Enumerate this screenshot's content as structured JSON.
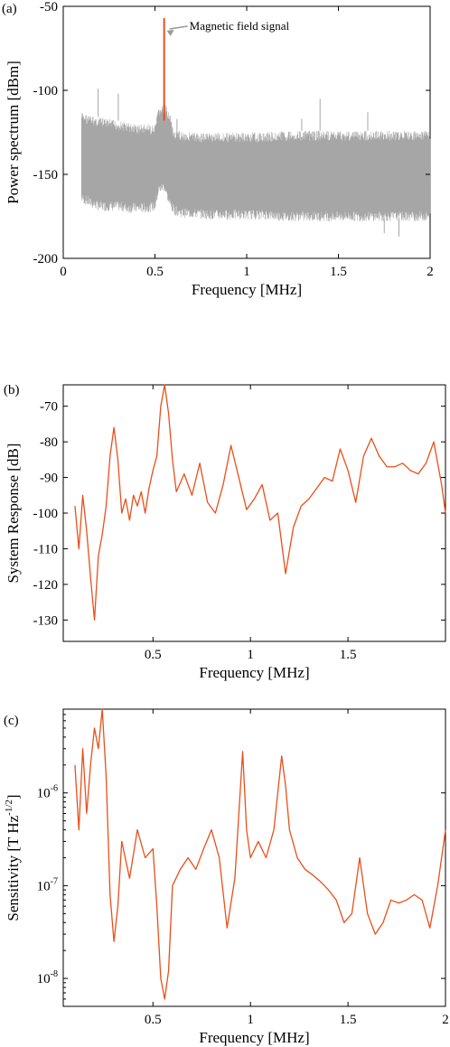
{
  "chart_data": [
    {
      "type": "line",
      "panel_label": "(a)",
      "xlabel": "Frequency [MHz]",
      "ylabel": "Power spectrum [dBm]",
      "xlim": [
        0,
        2
      ],
      "ylim": [
        -200,
        -50
      ],
      "xticks": [
        0,
        0.5,
        1,
        1.5,
        2
      ],
      "xtick_labels": [
        "0",
        "0.5",
        "1",
        "1.5",
        "2"
      ],
      "yticks": [
        -50,
        -100,
        -150,
        -200
      ],
      "ytick_labels": [
        "-50",
        "-100",
        "-150",
        "-200"
      ],
      "grid": false,
      "annotation": {
        "text": "Magnetic field signal",
        "x": 0.55,
        "y": -57
      },
      "series": [
        {
          "color": "#a6a6a6",
          "x": [
            0.1,
            0.15,
            0.2,
            0.25,
            0.3,
            0.35,
            0.4,
            0.45,
            0.5,
            0.52,
            0.55,
            0.58,
            0.6,
            0.65,
            0.7,
            0.8,
            0.9,
            1.0,
            1.1,
            1.2,
            1.3,
            1.4,
            1.5,
            1.6,
            1.7,
            1.8,
            1.9,
            2.0
          ],
          "upper": [
            -113,
            -115,
            -116,
            -117,
            -118,
            -119,
            -120,
            -120,
            -121,
            -110,
            -108,
            -112,
            -124,
            -124,
            -125,
            -125,
            -125,
            -125,
            -125,
            -124,
            -124,
            -124,
            -124,
            -124,
            -124,
            -124,
            -124,
            -124
          ],
          "lower": [
            -165,
            -168,
            -170,
            -170,
            -170,
            -171,
            -171,
            -171,
            -170,
            -160,
            -158,
            -168,
            -172,
            -174,
            -174,
            -175,
            -175,
            -175,
            -175,
            -176,
            -176,
            -176,
            -176,
            -176,
            -176,
            -176,
            -176,
            -176
          ],
          "spikes": [
            [
              0.19,
              -99
            ],
            [
              0.3,
              -102
            ],
            [
              1.4,
              -105
            ],
            [
              0.62,
              -117
            ],
            [
              1.3,
              -117
            ],
            [
              1.66,
              -113
            ],
            [
              1.83,
              -187
            ],
            [
              0.2,
              -160
            ],
            [
              1.75,
              -185
            ]
          ]
        },
        {
          "name": "Magnetic field signal",
          "color": "#e8501a",
          "x": [
            0.55
          ],
          "y": [
            -57
          ]
        }
      ]
    },
    {
      "type": "line",
      "panel_label": "(b)",
      "xlabel": "Frequency [MHz]",
      "ylabel": "System Response [dB]",
      "xlim": [
        0.04,
        2.0
      ],
      "ylim": [
        -136,
        -64
      ],
      "xticks": [
        0.5,
        1,
        1.5
      ],
      "xtick_labels": [
        "0.5",
        "1",
        "1.5"
      ],
      "yticks": [
        -70,
        -80,
        -90,
        -100,
        -110,
        -120,
        -130
      ],
      "ytick_labels": [
        "-70",
        "-80",
        "-90",
        "-100",
        "-110",
        "-120",
        "-130"
      ],
      "grid": false,
      "series": [
        {
          "color": "#e8501a",
          "x": [
            0.1,
            0.12,
            0.14,
            0.16,
            0.18,
            0.2,
            0.22,
            0.24,
            0.26,
            0.28,
            0.3,
            0.32,
            0.34,
            0.36,
            0.38,
            0.4,
            0.42,
            0.44,
            0.46,
            0.48,
            0.5,
            0.52,
            0.54,
            0.56,
            0.58,
            0.6,
            0.62,
            0.66,
            0.7,
            0.74,
            0.78,
            0.82,
            0.86,
            0.9,
            0.94,
            0.98,
            1.02,
            1.06,
            1.1,
            1.14,
            1.18,
            1.22,
            1.26,
            1.3,
            1.34,
            1.38,
            1.42,
            1.46,
            1.5,
            1.54,
            1.58,
            1.62,
            1.66,
            1.7,
            1.74,
            1.78,
            1.82,
            1.86,
            1.9,
            1.94,
            1.98,
            2.0
          ],
          "y": [
            -98,
            -110,
            -95,
            -105,
            -118,
            -130,
            -112,
            -106,
            -98,
            -84,
            -76,
            -85,
            -100,
            -96,
            -102,
            -95,
            -98,
            -94,
            -100,
            -93,
            -88,
            -84,
            -70,
            -64,
            -72,
            -85,
            -94,
            -89,
            -95,
            -86,
            -97,
            -100,
            -92,
            -81,
            -90,
            -99,
            -96,
            -92,
            -102,
            -100,
            -117,
            -104,
            -98,
            -96,
            -93,
            -90,
            -91,
            -82,
            -88,
            -97,
            -84,
            -79,
            -84,
            -87,
            -87,
            -86,
            -88,
            -89,
            -86,
            -80,
            -92,
            -100
          ]
        }
      ]
    },
    {
      "type": "line",
      "panel_label": "(c)",
      "xlabel": "Frequency [MHz]",
      "ylabel": "Sensitivity [T Hz^-1/2]",
      "log_y": true,
      "xlim": [
        0.04,
        2.0
      ],
      "ylim": [
        5e-09,
        8e-06
      ],
      "xticks": [
        0.5,
        1,
        1.5,
        2
      ],
      "xtick_labels": [
        "0.5",
        "1",
        "1.5",
        "2"
      ],
      "yticks": [
        1e-08,
        1e-07,
        1e-06
      ],
      "ytick_labels": [
        "10^-8",
        "10^-7",
        "10^-6"
      ],
      "grid": false,
      "series": [
        {
          "color": "#e8501a",
          "x": [
            0.1,
            0.12,
            0.14,
            0.16,
            0.18,
            0.2,
            0.22,
            0.24,
            0.26,
            0.28,
            0.3,
            0.32,
            0.34,
            0.38,
            0.42,
            0.46,
            0.5,
            0.52,
            0.54,
            0.56,
            0.58,
            0.6,
            0.64,
            0.68,
            0.72,
            0.76,
            0.8,
            0.84,
            0.88,
            0.92,
            0.96,
            0.98,
            1.0,
            1.04,
            1.08,
            1.12,
            1.16,
            1.18,
            1.2,
            1.24,
            1.28,
            1.32,
            1.36,
            1.4,
            1.44,
            1.48,
            1.52,
            1.56,
            1.6,
            1.64,
            1.68,
            1.72,
            1.76,
            1.8,
            1.84,
            1.88,
            1.92,
            1.96,
            2.0
          ],
          "y": [
            2e-06,
            4e-07,
            3e-06,
            6e-07,
            2e-06,
            5e-06,
            3e-06,
            8e-06,
            1.5e-06,
            8e-08,
            2.5e-08,
            6e-08,
            3e-07,
            1.2e-07,
            4e-07,
            2e-07,
            2.5e-07,
            6e-08,
            1e-08,
            6e-09,
            1.2e-08,
            1e-07,
            1.5e-07,
            2e-07,
            1.5e-07,
            2.5e-07,
            4e-07,
            2e-07,
            3.5e-08,
            1.2e-07,
            2.8e-06,
            4e-07,
            2e-07,
            3e-07,
            2e-07,
            4e-07,
            2.5e-06,
            1.2e-06,
            4e-07,
            2e-07,
            1.5e-07,
            1.3e-07,
            1.1e-07,
            9e-08,
            7e-08,
            4e-08,
            5e-08,
            2e-07,
            5e-08,
            3e-08,
            4e-08,
            7e-08,
            6.5e-08,
            7e-08,
            8e-08,
            7e-08,
            3.5e-08,
            1e-07,
            4e-07
          ]
        }
      ]
    }
  ]
}
